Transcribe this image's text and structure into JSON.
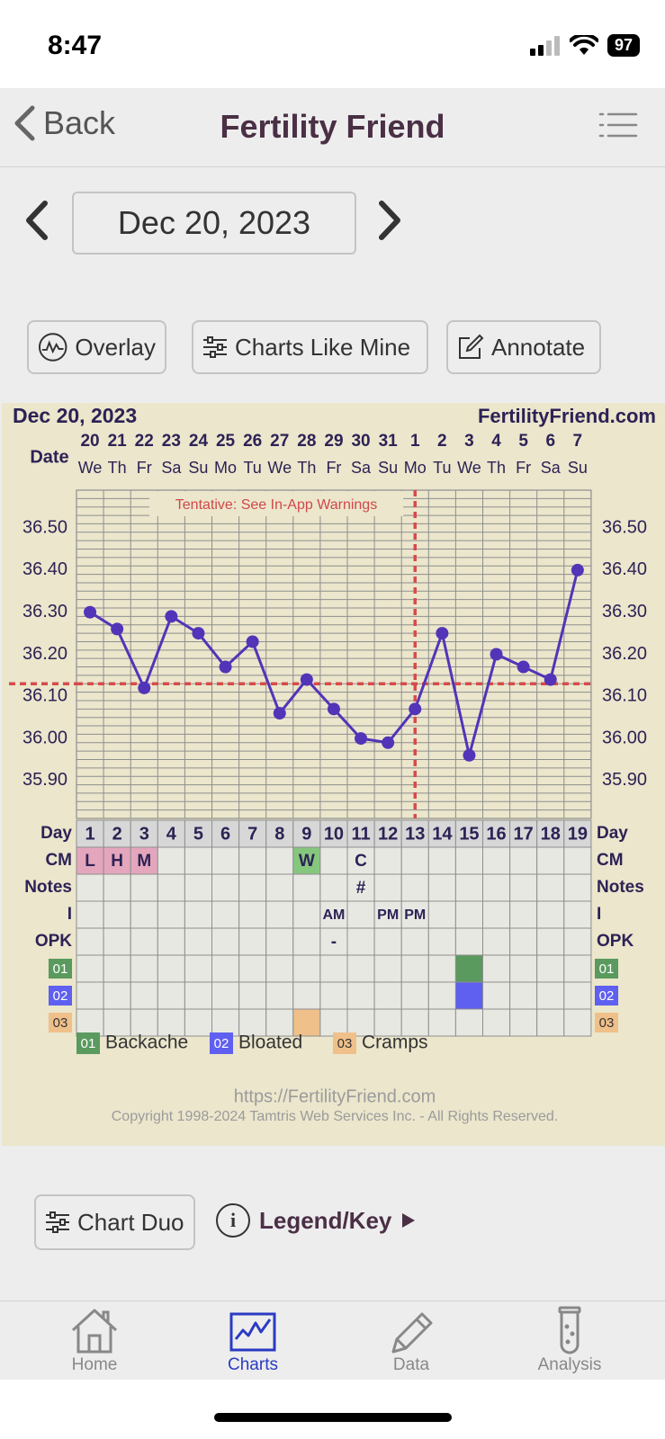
{
  "status": {
    "time": "8:47",
    "battery": "97"
  },
  "nav": {
    "back_label": "Back",
    "title": "Fertility Friend"
  },
  "date_nav": {
    "date": "Dec 20, 2023"
  },
  "toolbar": {
    "overlay": "Overlay",
    "charts_like_mine": "Charts Like Mine",
    "annotate": "Annotate"
  },
  "chart": {
    "header_date": "Dec 20, 2023",
    "site": "FertilityFriend.com",
    "date_label": "Date",
    "warning": "Tentative: See In-App Warnings",
    "dates": [
      "20",
      "21",
      "22",
      "23",
      "24",
      "25",
      "26",
      "27",
      "28",
      "29",
      "30",
      "31",
      "1",
      "2",
      "3",
      "4",
      "5",
      "6",
      "7"
    ],
    "weekdays": [
      "We",
      "Th",
      "Fr",
      "Sa",
      "Su",
      "Mo",
      "Tu",
      "We",
      "Th",
      "Fr",
      "Sa",
      "Su",
      "Mo",
      "Tu",
      "We",
      "Th",
      "Fr",
      "Sa",
      "Su"
    ],
    "temp_labels": [
      "36.50",
      "36.40",
      "36.30",
      "36.20",
      "36.10",
      "36.00",
      "35.90"
    ],
    "row_labels": {
      "day": "Day",
      "cm": "CM",
      "notes": "Notes",
      "i": "I",
      "opk": "OPK"
    },
    "cm": [
      "L",
      "H",
      "M",
      "",
      "",
      "",
      "",
      "",
      "W",
      "",
      "C",
      "",
      "",
      "",
      "",
      "",
      "",
      "",
      ""
    ],
    "notes": [
      "",
      "",
      "",
      "",
      "",
      "",
      "",
      "",
      "",
      "",
      "#",
      "",
      "",
      "",
      "",
      "",
      "",
      "",
      ""
    ],
    "intercourse": [
      "",
      "",
      "",
      "",
      "",
      "",
      "",
      "",
      "",
      "AM",
      "",
      "PM",
      "PM",
      "",
      "",
      "",
      "",
      "",
      ""
    ],
    "opk": [
      "",
      "",
      "",
      "",
      "",
      "",
      "",
      "",
      "",
      "-",
      "",
      "",
      "",
      "",
      "",
      "",
      "",
      "",
      ""
    ],
    "symptoms": [
      {
        "code": "01",
        "name": "Backache",
        "color": "#5a9a5e",
        "days": [
          15
        ]
      },
      {
        "code": "02",
        "name": "Bloated",
        "color": "#5f5ff0",
        "days": [
          15
        ]
      },
      {
        "code": "03",
        "name": "Cramps",
        "color": "#f0c08a",
        "days": [
          9
        ]
      }
    ],
    "footer_url": "https://FertilityFriend.com",
    "copyright": "Copyright 1998-2024 Tamtris Web Services Inc. - All Rights Reserved."
  },
  "chart_data": {
    "type": "line",
    "x": [
      1,
      2,
      3,
      4,
      5,
      6,
      7,
      8,
      9,
      10,
      11,
      12,
      13,
      14,
      15,
      16,
      17,
      18,
      19
    ],
    "series": [
      {
        "values": [
          36.3,
          36.26,
          36.12,
          36.29,
          36.25,
          36.17,
          36.23,
          36.06,
          36.14,
          36.07,
          36.0,
          35.99,
          36.07,
          36.25,
          35.96,
          36.2,
          36.17,
          36.14,
          36.4
        ]
      }
    ],
    "coverline": 36.13,
    "ovulation_day": 13,
    "ylim": [
      35.81,
      36.59
    ],
    "colors": {
      "line": "#5234b8",
      "coverline": "#d84b4b",
      "grid": "#8e8e8e"
    }
  },
  "bottom": {
    "chart_duo": "Chart Duo",
    "legend": "Legend/Key"
  },
  "tabs": [
    {
      "label": "Home",
      "icon": "house-icon"
    },
    {
      "label": "Charts",
      "icon": "chart-icon"
    },
    {
      "label": "Data",
      "icon": "pencil-icon"
    },
    {
      "label": "Analysis",
      "icon": "test-tube-icon"
    }
  ]
}
